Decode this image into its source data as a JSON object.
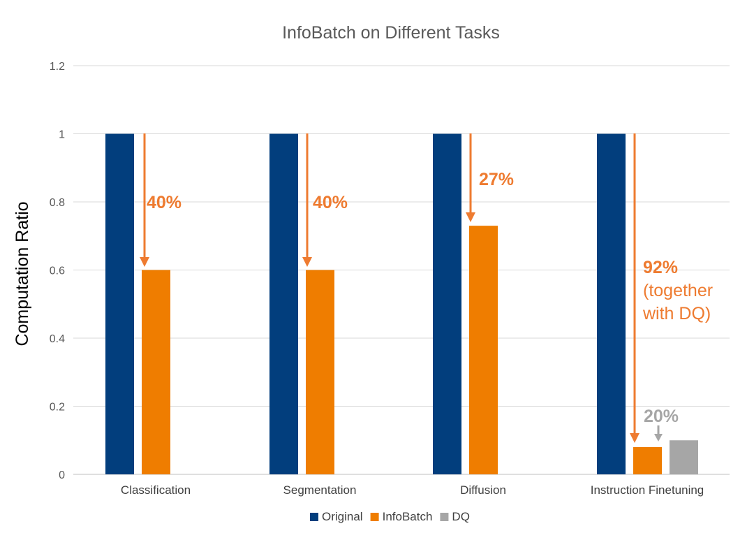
{
  "chart_data": {
    "type": "bar",
    "title": "InfoBatch on Different Tasks",
    "xlabel": "",
    "ylabel": "Computation Ratio",
    "ylim": [
      0,
      1.2
    ],
    "yticks": [
      0,
      0.2,
      0.4,
      0.6,
      0.8,
      1,
      1.2
    ],
    "ytick_labels": [
      "0",
      "0.2",
      "0.4",
      "0.6",
      "0.8",
      "1",
      "1.2"
    ],
    "grid": true,
    "legend_position": "bottom-center",
    "categories": [
      "Classification",
      "Segmentation",
      "Diffusion",
      "Instruction Finetuning"
    ],
    "series": [
      {
        "name": "Original",
        "color": "#023e7d",
        "values": [
          1,
          1,
          1,
          1
        ]
      },
      {
        "name": "InfoBatch",
        "color": "#ef7d00",
        "values": [
          0.6,
          0.6,
          0.73,
          0.08
        ]
      },
      {
        "name": "DQ",
        "color": "#a6a6a6",
        "values": [
          null,
          null,
          null,
          0.1
        ]
      }
    ],
    "annotations": [
      {
        "category": "Classification",
        "lines": [
          "40%"
        ],
        "color": "#ee7b30"
      },
      {
        "category": "Segmentation",
        "lines": [
          "40%"
        ],
        "color": "#ee7b30"
      },
      {
        "category": "Diffusion",
        "lines": [
          "27%"
        ],
        "color": "#ee7b30"
      },
      {
        "category": "Instruction Finetuning",
        "lines": [
          "92%",
          "(together",
          "with DQ)"
        ],
        "color": "#ee7b30"
      },
      {
        "category": "Instruction Finetuning",
        "lines": [
          "20%"
        ],
        "color": "#a6a6a6"
      }
    ]
  }
}
